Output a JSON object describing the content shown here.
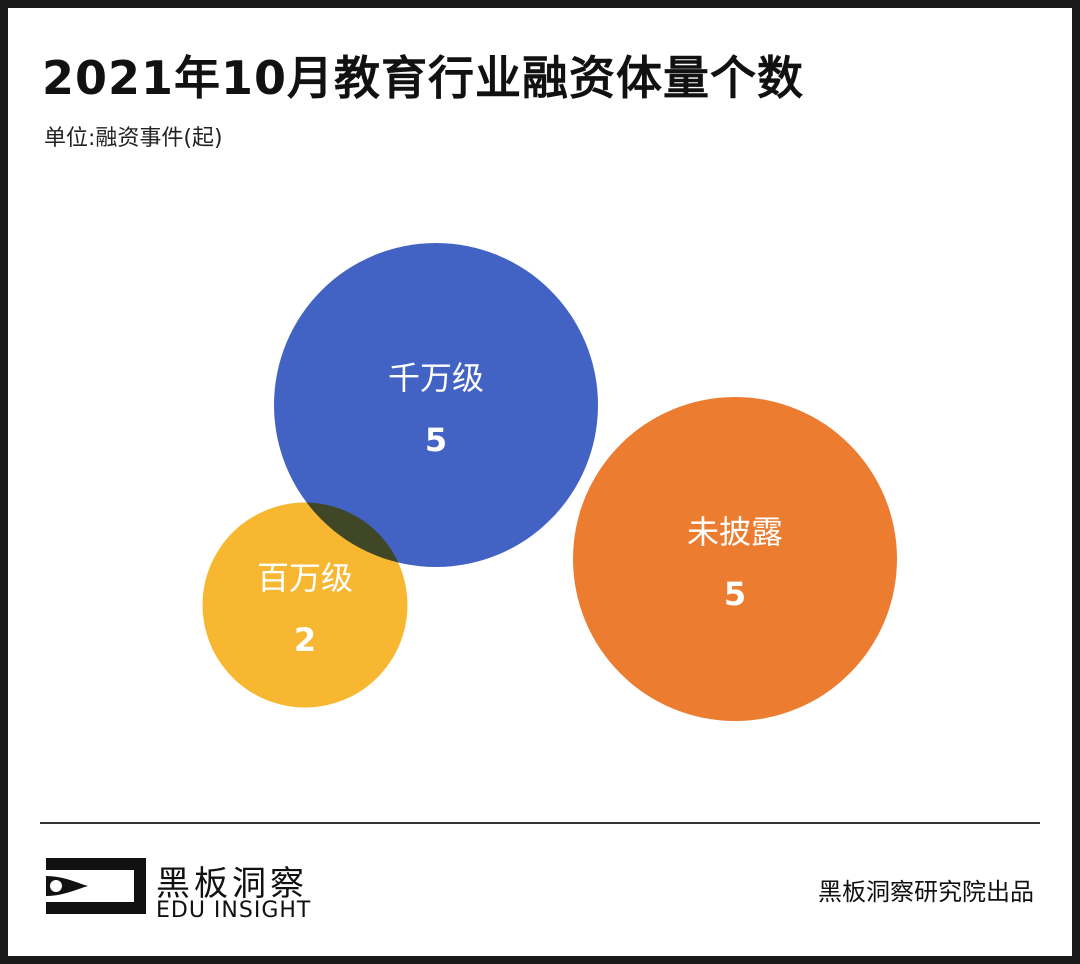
{
  "header": {
    "title": "2021年10月教育行业融资体量个数",
    "subtitle": "单位:融资事件(起)"
  },
  "chart_data": {
    "type": "bubble",
    "title": "2021年10月教育行业融资体量个数",
    "unit_label": "单位:融资事件(起)",
    "points": [
      {
        "name": "千万级",
        "value": 5,
        "color": "#4263c4"
      },
      {
        "name": "百万级",
        "value": 2,
        "color": "#f7b731"
      },
      {
        "name": "未披露",
        "value": 5,
        "color": "#ec7c30"
      }
    ]
  },
  "footer": {
    "brand_cn": "黑板洞察",
    "brand_en": "EDU INSIGHT",
    "credit": "黑板洞察研究院出品"
  }
}
